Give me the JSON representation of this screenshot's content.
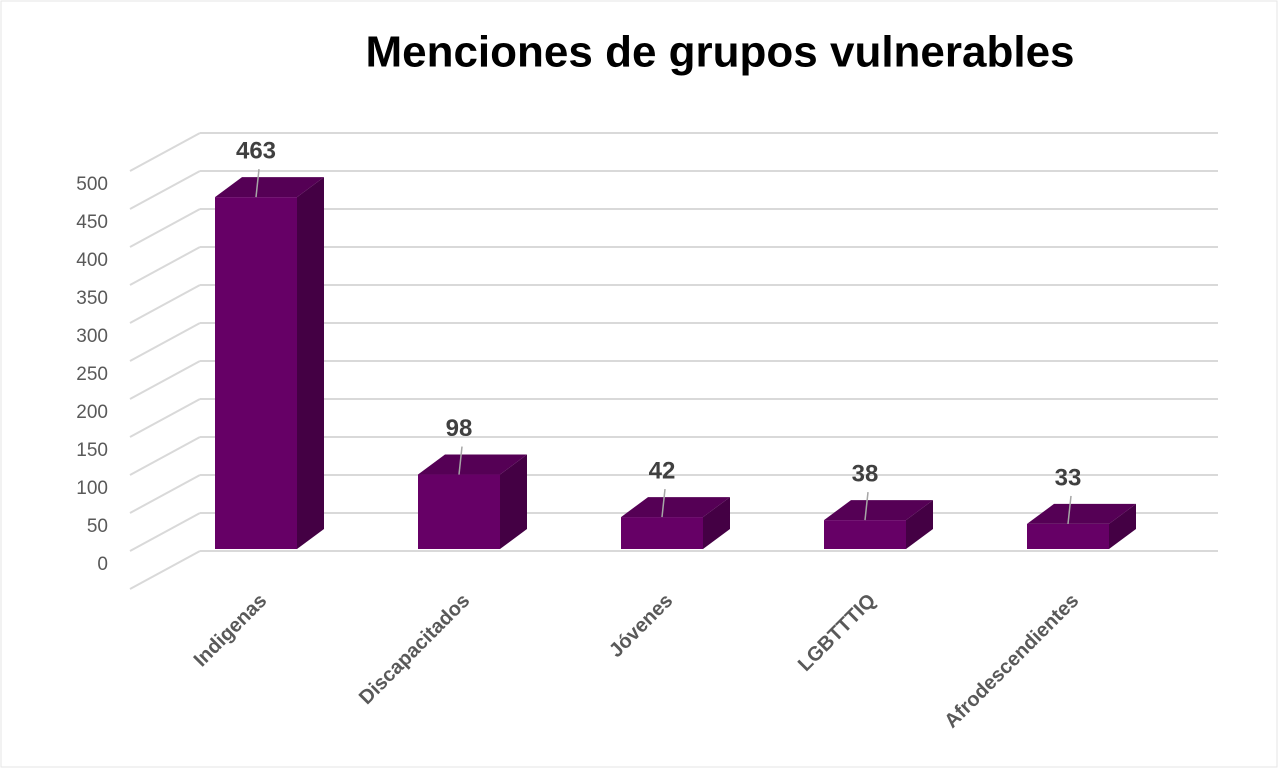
{
  "chart_data": {
    "type": "bar",
    "title": "Menciones de grupos vulnerables",
    "categories": [
      "Indigenas",
      "Discapacitados",
      "Jóvenes",
      "LGBTTTIQ",
      "Afrodescendientes"
    ],
    "values": [
      463,
      98,
      42,
      38,
      33
    ],
    "color": "#660066",
    "ylim": [
      0,
      550
    ],
    "yticks": [
      0,
      50,
      100,
      150,
      200,
      250,
      300,
      350,
      400,
      450,
      500
    ],
    "grid": true
  }
}
